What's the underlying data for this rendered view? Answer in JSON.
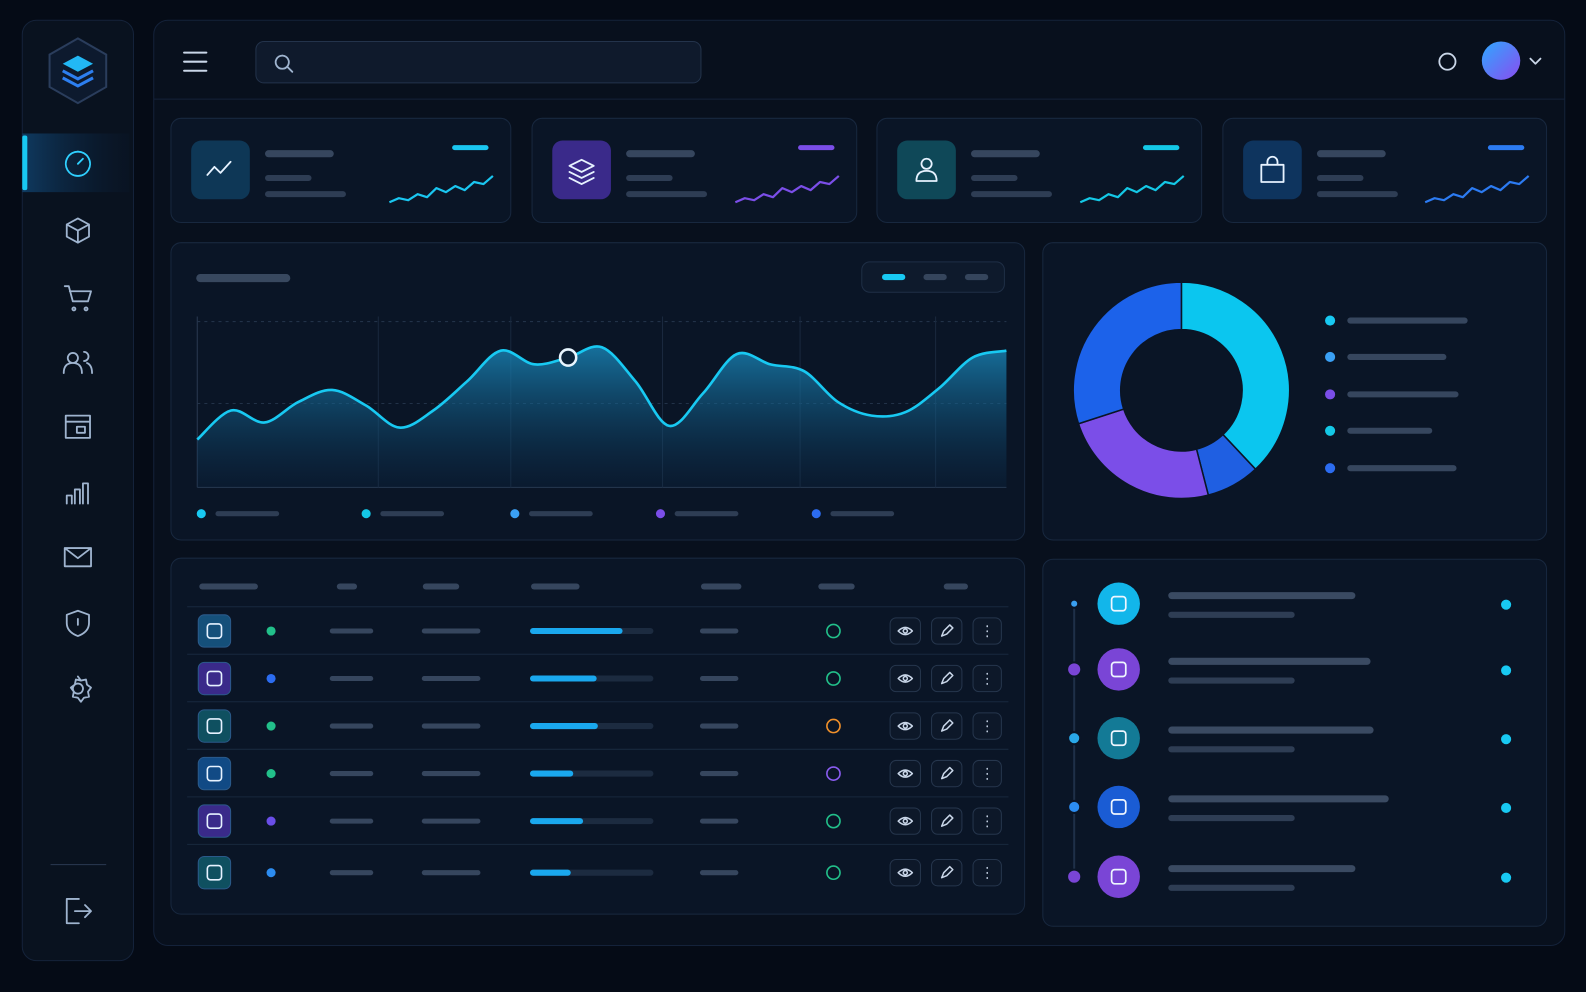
{
  "chart_data": [
    {
      "type": "area",
      "values": [
        28,
        45,
        38,
        50,
        57,
        48,
        35,
        45,
        62,
        80,
        72,
        76,
        82,
        62,
        36,
        55,
        78,
        72,
        68,
        50,
        42,
        44,
        58,
        76,
        80
      ],
      "ylim": [
        0,
        100
      ],
      "color": "#18c9f2",
      "grid": true
    },
    {
      "type": "donut",
      "values": [
        38,
        8,
        24,
        30
      ],
      "colors": [
        "#0bc6ef",
        "#1f5fe2",
        "#7b4ee8",
        "#1c62ea"
      ]
    }
  ],
  "table": {
    "progress": [
      75,
      54,
      55,
      35,
      43,
      33
    ],
    "progress_lim": [
      0,
      100
    ]
  }
}
